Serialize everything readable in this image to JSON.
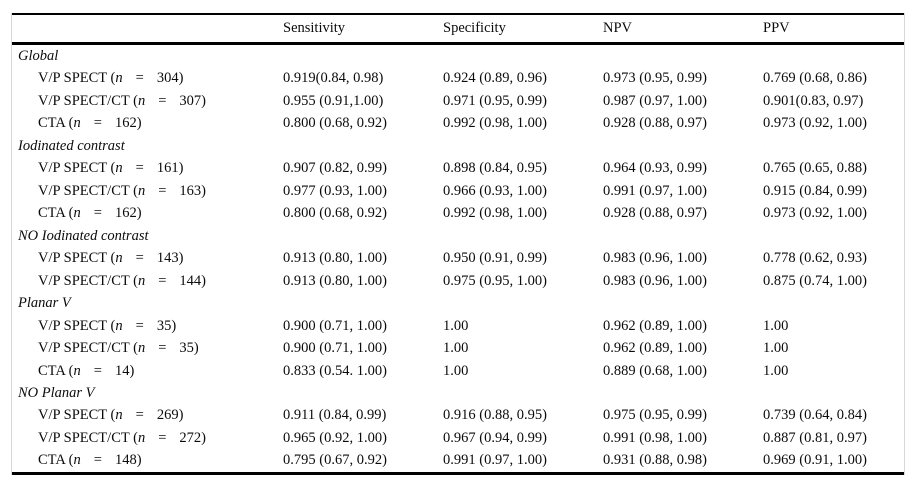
{
  "table": {
    "columns": [
      "",
      "Sensitivity",
      "Specificity",
      "NPV",
      "PPV"
    ],
    "row_label_format": {
      "open_paren": "(",
      "n_symbol": "n",
      "equals": "=",
      "close_paren": ")"
    },
    "groups": [
      {
        "name": "Global",
        "rows": [
          {
            "method": "V/P SPECT",
            "n": "304",
            "sensitivity": "0.919(0.84, 0.98)",
            "specificity": "0.924 (0.89, 0.96)",
            "npv": "0.973 (0.95, 0.99)",
            "ppv": "0.769 (0.68, 0.86)"
          },
          {
            "method": "V/P SPECT/CT",
            "n": "307",
            "sensitivity": "0.955 (0.91,1.00)",
            "specificity": "0.971 (0.95, 0.99)",
            "npv": "0.987 (0.97, 1.00)",
            "ppv": "0.901(0.83, 0.97)"
          },
          {
            "method": "CTA",
            "n": "162",
            "sensitivity": "0.800 (0.68, 0.92)",
            "specificity": "0.992 (0.98, 1.00)",
            "npv": "0.928 (0.88, 0.97)",
            "ppv": "0.973 (0.92, 1.00)"
          }
        ]
      },
      {
        "name": "Iodinated contrast",
        "rows": [
          {
            "method": "V/P SPECT",
            "n": "161",
            "sensitivity": "0.907 (0.82, 0.99)",
            "specificity": "0.898 (0.84, 0.95)",
            "npv": "0.964 (0.93, 0.99)",
            "ppv": "0.765 (0.65, 0.88)"
          },
          {
            "method": "V/P SPECT/CT",
            "n": "163",
            "sensitivity": "0.977 (0.93, 1.00)",
            "specificity": "0.966 (0.93, 1.00)",
            "npv": "0.991 (0.97, 1.00)",
            "ppv": "0.915 (0.84, 0.99)"
          },
          {
            "method": "CTA",
            "n": "162",
            "sensitivity": "0.800 (0.68, 0.92)",
            "specificity": "0.992 (0.98, 1.00)",
            "npv": "0.928 (0.88, 0.97)",
            "ppv": "0.973 (0.92, 1.00)"
          }
        ]
      },
      {
        "name": "NO Iodinated contrast",
        "rows": [
          {
            "method": "V/P SPECT",
            "n": "143",
            "sensitivity": "0.913 (0.80, 1.00)",
            "specificity": "0.950 (0.91, 0.99)",
            "npv": "0.983 (0.96, 1.00)",
            "ppv": "0.778 (0.62, 0.93)"
          },
          {
            "method": "V/P SPECT/CT",
            "n": "144",
            "sensitivity": "0.913 (0.80, 1.00)",
            "specificity": "0.975 (0.95, 1.00)",
            "npv": "0.983 (0.96, 1.00)",
            "ppv": "0.875 (0.74, 1.00)"
          }
        ]
      },
      {
        "name": "Planar V",
        "rows": [
          {
            "method": "V/P SPECT",
            "n": "35",
            "sensitivity": "0.900 (0.71, 1.00)",
            "specificity": "1.00",
            "npv": "0.962 (0.89, 1.00)",
            "ppv": "1.00"
          },
          {
            "method": "V/P SPECT/CT",
            "n": "35",
            "sensitivity": "0.900 (0.71, 1.00)",
            "specificity": "1.00",
            "npv": "0.962 (0.89, 1.00)",
            "ppv": "1.00"
          },
          {
            "method": "CTA",
            "n": "14",
            "sensitivity": "0.833 (0.54. 1.00)",
            "specificity": "1.00",
            "npv": "0.889 (0.68, 1.00)",
            "ppv": "1.00"
          }
        ]
      },
      {
        "name": "NO Planar V",
        "rows": [
          {
            "method": "V/P SPECT",
            "n": "269",
            "sensitivity": "0.911 (0.84, 0.99)",
            "specificity": "0.916 (0.88, 0.95)",
            "npv": "0.975 (0.95, 0.99)",
            "ppv": "0.739 (0.64, 0.84)"
          },
          {
            "method": "V/P SPECT/CT",
            "n": "272",
            "sensitivity": "0.965 (0.92, 1.00)",
            "specificity": "0.967 (0.94, 0.99)",
            "npv": "0.991 (0.98, 1.00)",
            "ppv": "0.887 (0.81, 0.97)"
          },
          {
            "method": "CTA",
            "n": "148",
            "sensitivity": "0.795 (0.67, 0.92)",
            "specificity": "0.991 (0.97, 1.00)",
            "npv": "0.931 (0.88, 0.98)",
            "ppv": "0.969 (0.91, 1.00)"
          }
        ]
      }
    ]
  }
}
